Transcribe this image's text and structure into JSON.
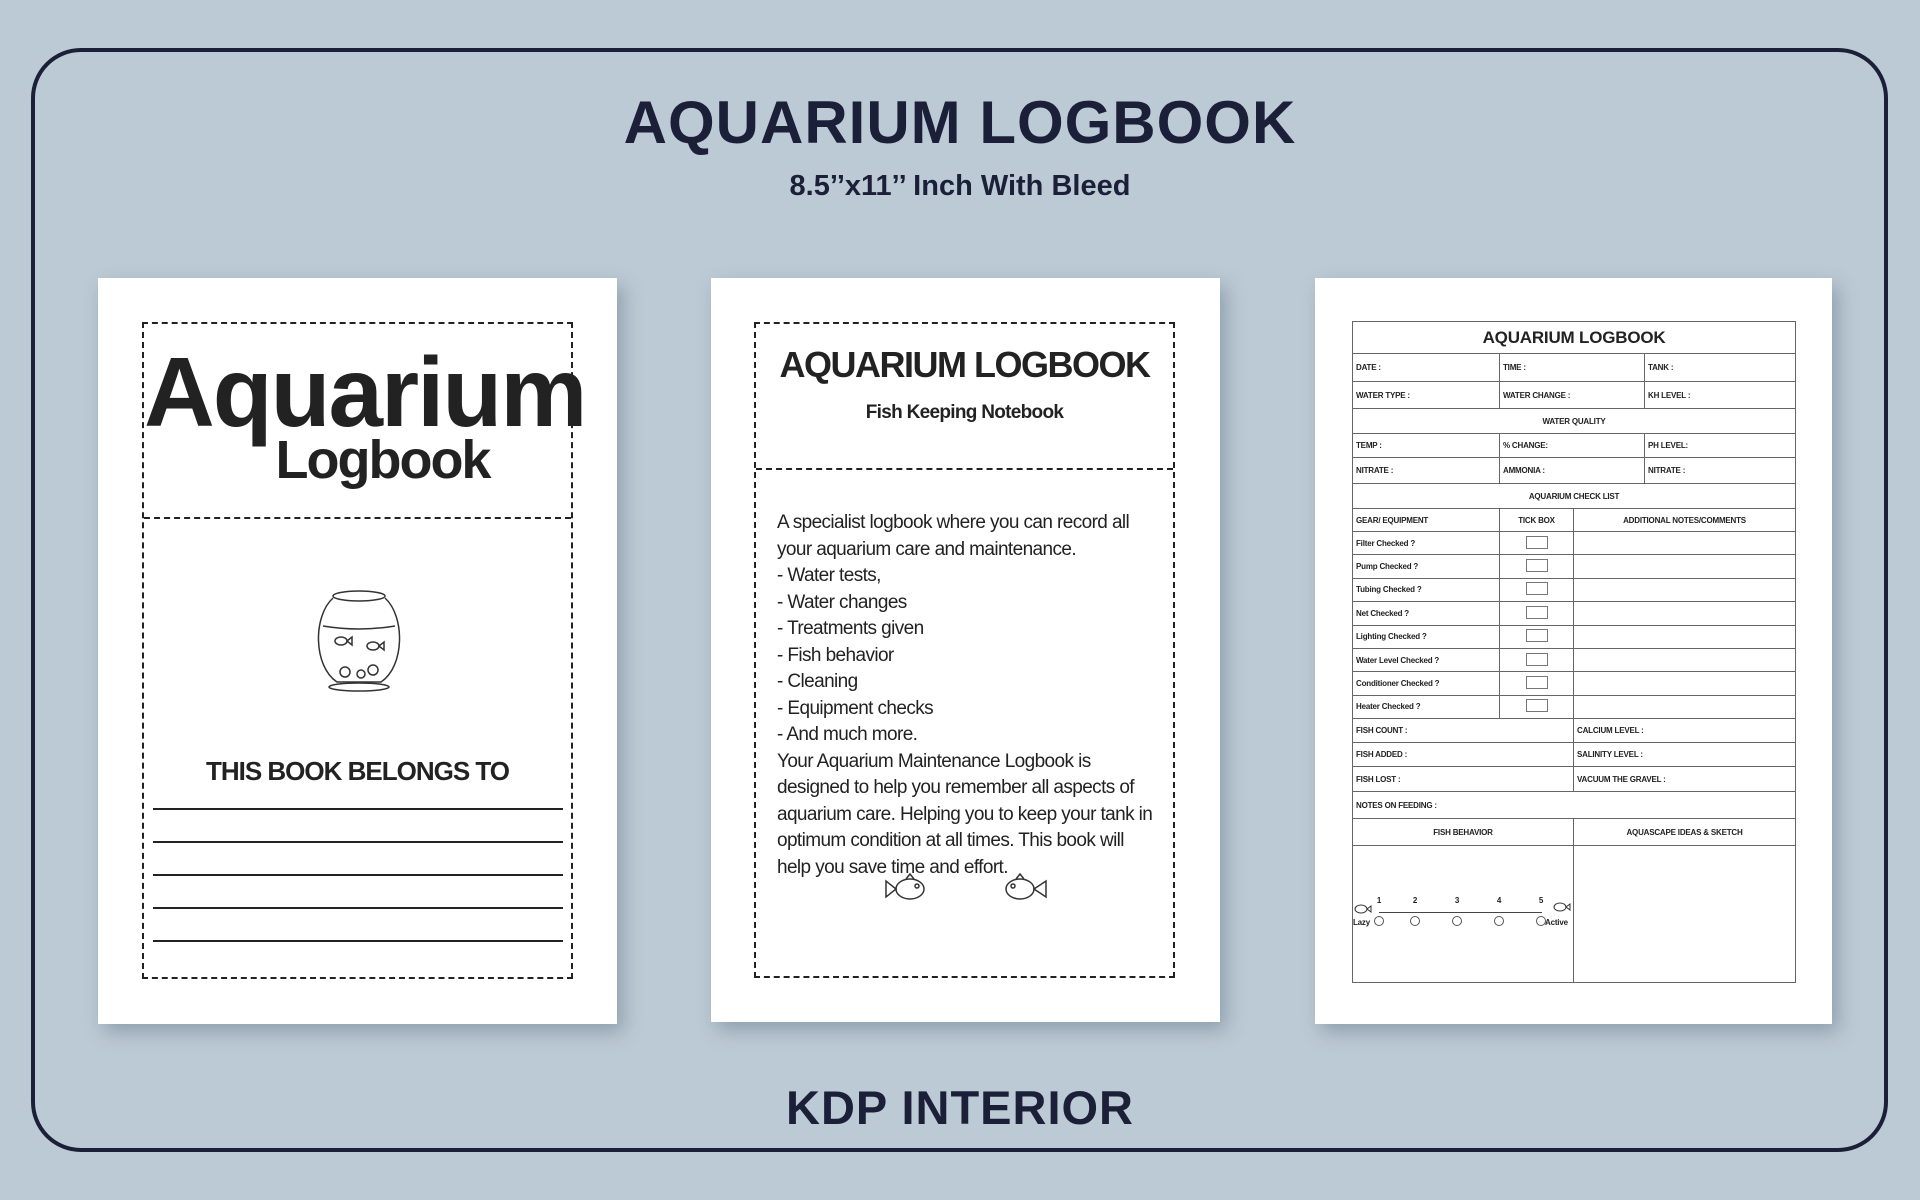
{
  "header": {
    "title": "AQUARIUM LOGBOOK",
    "subtitle": "8.5’’x11’’ Inch With Bleed"
  },
  "footer": {
    "label": "KDP INTERIOR"
  },
  "colors": {
    "background": "#bccad5",
    "frame": "#1b1f38",
    "page": "#ffffff"
  },
  "page1": {
    "title_line1": "Aquarium",
    "title_line2": "Logbook",
    "illustration": "fishbowl-icon",
    "belongs_to": "THIS BOOK BELONGS TO"
  },
  "page2": {
    "title": "AQUARIUM LOGBOOK",
    "subtitle": "Fish Keeping Notebook",
    "lines": [
      "A specialist logbook where you can record all your aquarium care and maintenance.",
      "- Water tests,",
      "- Water changes",
      "- Treatments given",
      "- Fish behavior",
      "- Cleaning",
      "- Equipment checks",
      "- And much more.",
      "Your Aquarium Maintenance Logbook is designed to help you remember all aspects of aquarium care. Helping you to keep your tank in optimum condition at all times. This book will help you save time and effort."
    ]
  },
  "page3": {
    "title": "AQUARIUM LOGBOOK",
    "row1": [
      "DATE :",
      "TIME :",
      "TANK :"
    ],
    "row2": [
      "WATER TYPE :",
      "WATER CHANGE :",
      "KH LEVEL :"
    ],
    "water_quality": "WATER QUALITY",
    "row3": [
      "TEMP :",
      "% CHANGE:",
      "PH LEVEL:"
    ],
    "row4": [
      "NITRATE :",
      "AMMONIA :",
      "NITRATE :"
    ],
    "checklist_title": "AQUARIUM CHECK LIST",
    "checklist_headers": [
      "GEAR/ EQUIPMENT",
      "TICK BOX",
      "ADDITIONAL NOTES/COMMENTS"
    ],
    "checklist": [
      "Filter Checked ?",
      "Pump Checked ?",
      "Tubing Checked ?",
      "Net  Checked ?",
      "Lighting Checked ?",
      "Water Level  Checked ?",
      "Conditioner  Checked ?",
      "Heater Checked ?"
    ],
    "fish_rows": [
      [
        "FISH COUNT :",
        "CALCIUM LEVEL :"
      ],
      [
        "FISH ADDED :",
        "SALINITY LEVEL :"
      ],
      [
        "FISH LOST :",
        "VACUUM THE GRAVEL :"
      ]
    ],
    "notes_feeding": "NOTES ON FEEDING :",
    "behavior_header": "FISH BEHAVIOR",
    "sketch_header": "AQUASCAPE IDEAS & SKETCH",
    "scale": [
      "1",
      "2",
      "3",
      "4",
      "5"
    ],
    "scale_low": "Lazy",
    "scale_high": "Active"
  }
}
